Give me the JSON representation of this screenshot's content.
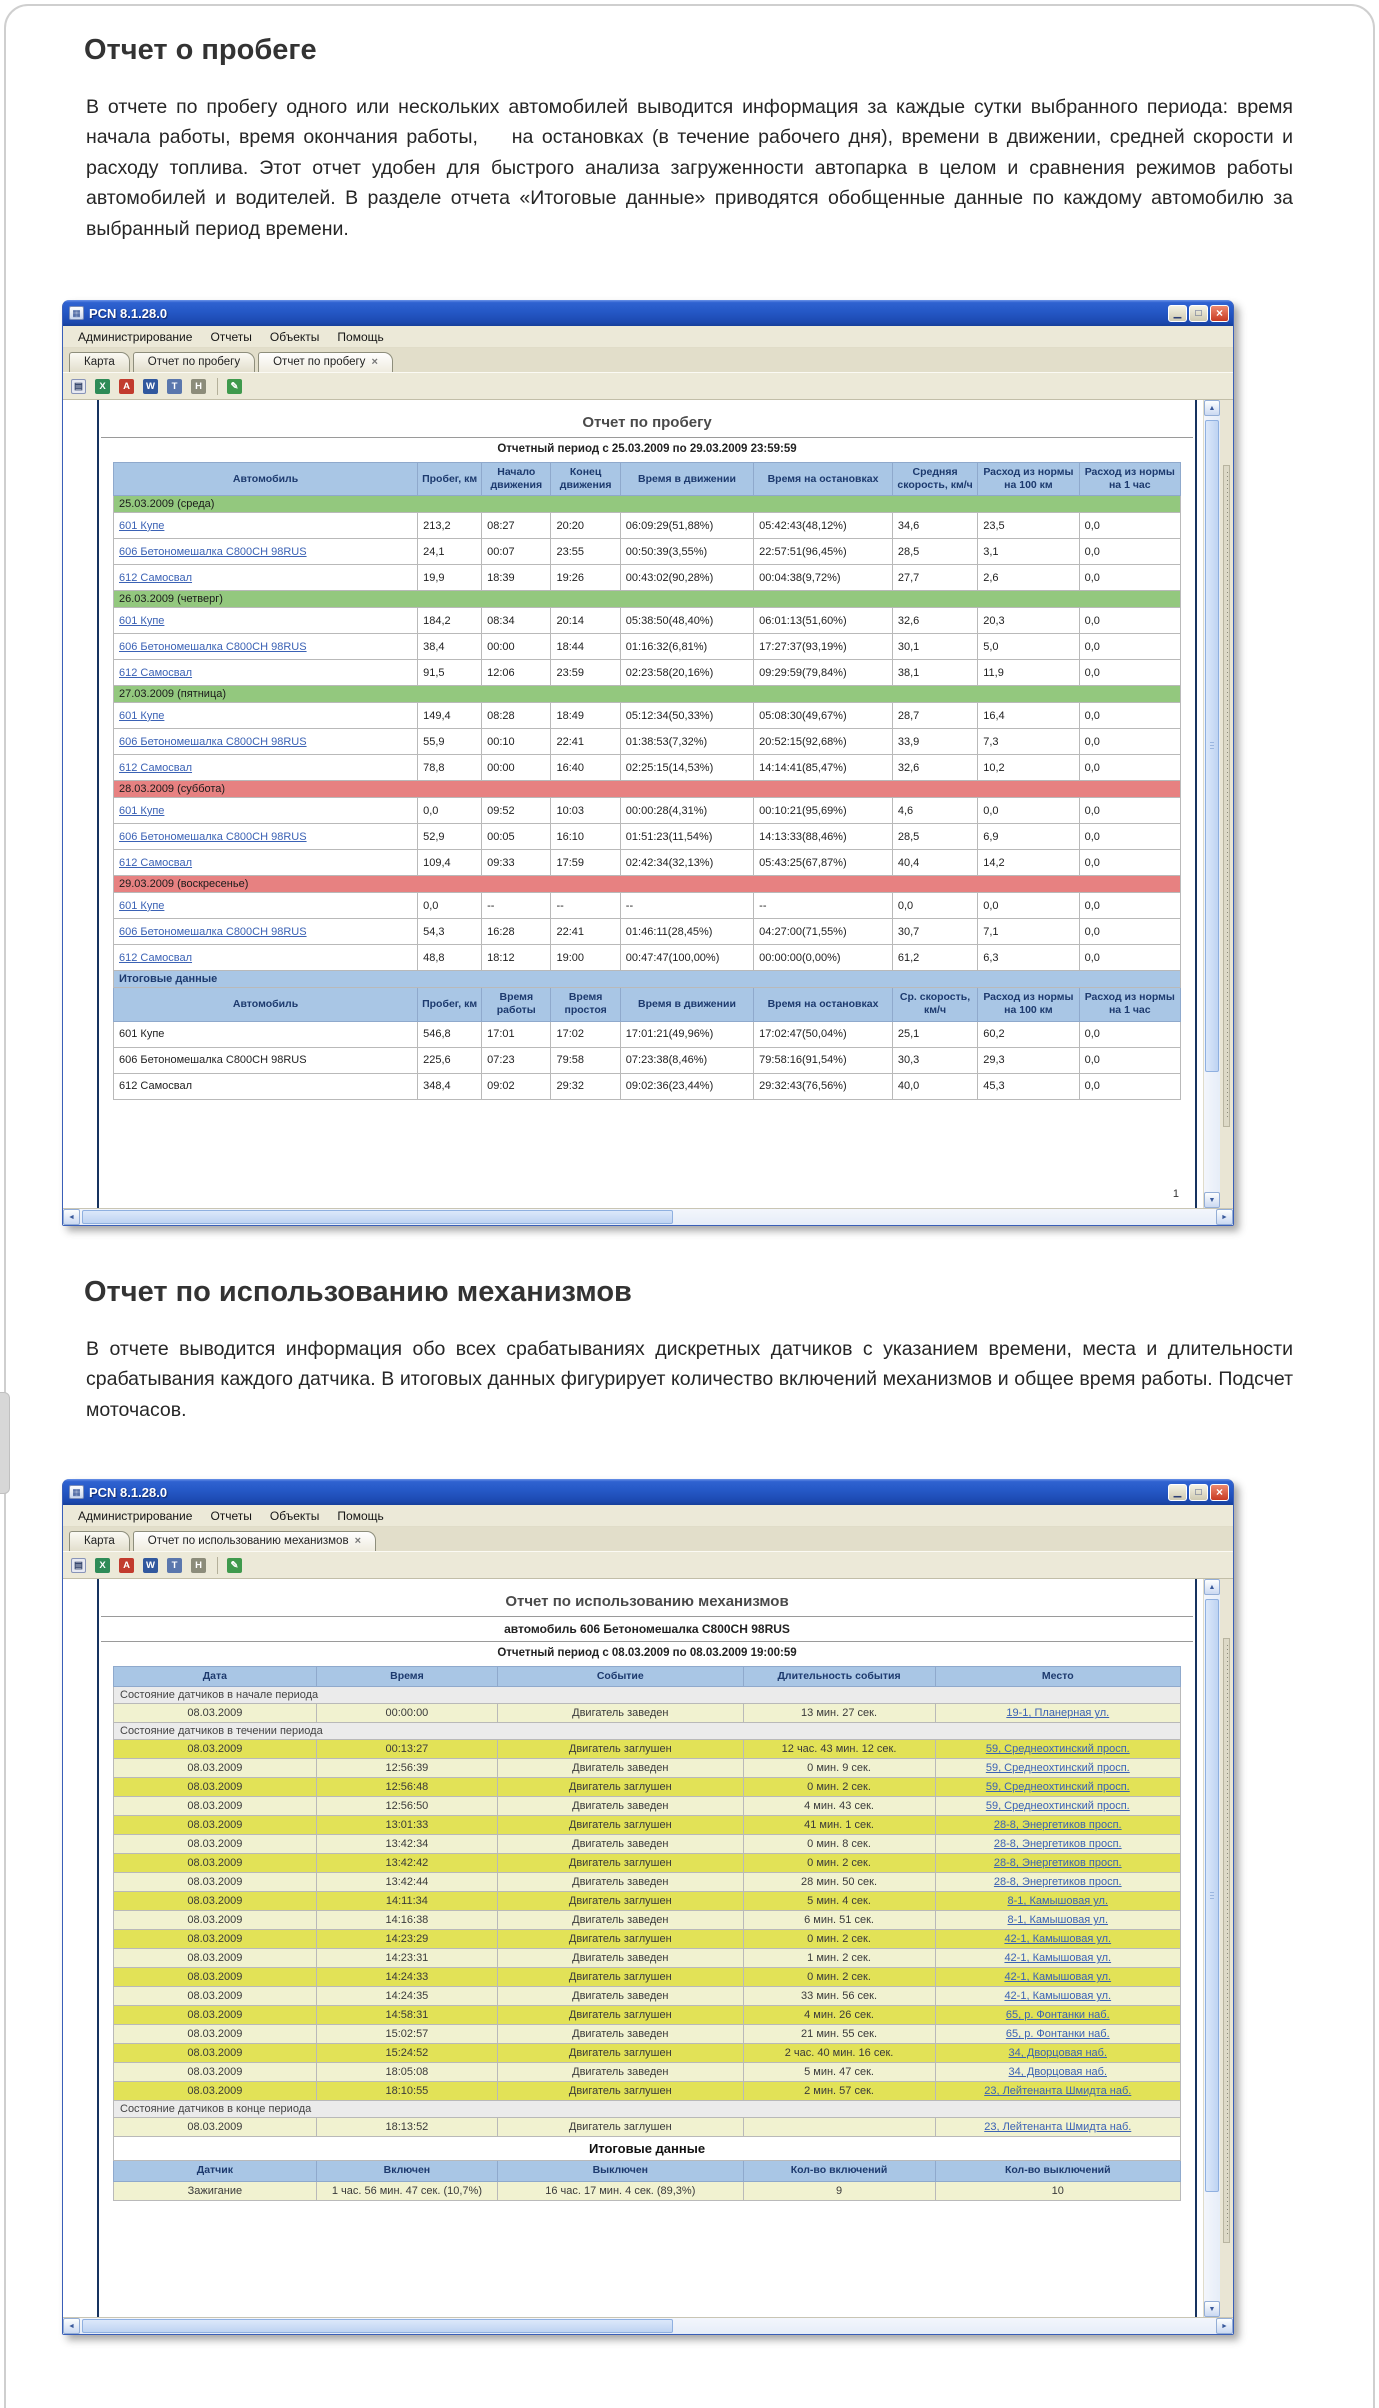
{
  "sections": [
    {
      "heading": "Отчет о пробеге",
      "paragraph": "В отчете по пробегу одного или нескольких автомобилей выводится информация за каждые сутки выбранного периода: время начала работы, время окончания работы,    на остановках (в течение рабочего дня), времени в движении, средней скорости и расходу топлива. Этот отчет удобен для быстрого анализа загруженности автопарка в целом и сравнения режимов работы автомобилей и водителей. В разделе отчета «Итоговые данные» приводятся обобщенные данные по каждому автомобилю за выбранный период времени."
    },
    {
      "heading": "Отчет по использованию механизмов",
      "paragraph": "В отчете выводится информация обо всех срабатываниях дискретных датчиков с указанием времени, места и длительности срабатывания каждого датчика. В итоговых данных фигурирует количество включений механизмов и общее время работы. Подсчет моточасов."
    }
  ],
  "chrome": {
    "title": "PCN 8.1.28.0",
    "app_icon_glyph": "▦",
    "btn_min": "▁",
    "btn_max": "□",
    "btn_close": "×",
    "menu": [
      "Администрирование",
      "Отчеты",
      "Объекты",
      "Помощь"
    ],
    "toolbar": [
      {
        "name": "print-icon",
        "glyph": "▤",
        "kind": "ic-print"
      },
      {
        "name": "export-excel-icon",
        "glyph": "X",
        "kind": "ic-xls"
      },
      {
        "name": "export-pdf-icon",
        "glyph": "A",
        "kind": "ic-pdf"
      },
      {
        "name": "export-word-icon",
        "glyph": "W",
        "kind": "ic-doc"
      },
      {
        "name": "export-text-icon",
        "glyph": "T",
        "kind": "ic-txt"
      },
      {
        "name": "export-html-icon",
        "glyph": "H",
        "kind": "ic-htm"
      },
      {
        "name": "settings-icon",
        "glyph": "✎",
        "kind": "ic-set"
      }
    ],
    "scroll": {
      "up": "▲",
      "down": "▼",
      "left": "◄",
      "right": "►"
    }
  },
  "colors": {
    "title_bar_blue": "#2558c6",
    "table_header_blue": "#a9c6e5",
    "weekday_band_green": "#93c87e",
    "weekend_band_red": "#e78181",
    "engine_on_row_yellow": "#f1f2d0",
    "engine_off_row_yellow": "#e2e257",
    "link_blue": "#3b62b5"
  },
  "window1": {
    "tabs": [
      {
        "label": "Карта",
        "state": "",
        "close_glyph": ""
      },
      {
        "label": "Отчет по пробегу",
        "state": "",
        "close_glyph": ""
      },
      {
        "label": "Отчет по пробегу",
        "state": "active",
        "close_glyph": "×"
      }
    ],
    "report": {
      "title": "Отчет по пробегу",
      "period": "Отчетный период с 25.03.2009 по 29.03.2009 23:59:59",
      "page_number": "1",
      "columns": [
        "Автомобиль",
        "Пробег, км",
        "Начало движения",
        "Конец движения",
        "Время в движении",
        "Время на остановках",
        "Средняя скорость, км/ч",
        "Расход из нормы на 100 км",
        "Расход из нормы на 1 час"
      ],
      "groups": [
        {
          "label": "25.03.2009 (среда)",
          "type": "",
          "rows": [
            [
              "601 Купе",
              "213,2",
              "08:27",
              "20:20",
              "06:09:29(51,88%)",
              "05:42:43(48,12%)",
              "34,6",
              "23,5",
              "0,0"
            ],
            [
              "606 Бетономешалка C800CH 98RUS",
              "24,1",
              "00:07",
              "23:55",
              "00:50:39(3,55%)",
              "22:57:51(96,45%)",
              "28,5",
              "3,1",
              "0,0"
            ],
            [
              "612 Самосвал",
              "19,9",
              "18:39",
              "19:26",
              "00:43:02(90,28%)",
              "00:04:38(9,72%)",
              "27,7",
              "2,6",
              "0,0"
            ]
          ]
        },
        {
          "label": "26.03.2009 (четверг)",
          "type": "",
          "rows": [
            [
              "601 Купе",
              "184,2",
              "08:34",
              "20:14",
              "05:38:50(48,40%)",
              "06:01:13(51,60%)",
              "32,6",
              "20,3",
              "0,0"
            ],
            [
              "606 Бетономешалка C800CH 98RUS",
              "38,4",
              "00:00",
              "18:44",
              "01:16:32(6,81%)",
              "17:27:37(93,19%)",
              "30,1",
              "5,0",
              "0,0"
            ],
            [
              "612 Самосвал",
              "91,5",
              "12:06",
              "23:59",
              "02:23:58(20,16%)",
              "09:29:59(79,84%)",
              "38,1",
              "11,9",
              "0,0"
            ]
          ]
        },
        {
          "label": "27.03.2009 (пятница)",
          "type": "",
          "rows": [
            [
              "601 Купе",
              "149,4",
              "08:28",
              "18:49",
              "05:12:34(50,33%)",
              "05:08:30(49,67%)",
              "28,7",
              "16,4",
              "0,0"
            ],
            [
              "606 Бетономешалка C800CH 98RUS",
              "55,9",
              "00:10",
              "22:41",
              "01:38:53(7,32%)",
              "20:52:15(92,68%)",
              "33,9",
              "7,3",
              "0,0"
            ],
            [
              "612 Самосвал",
              "78,8",
              "00:00",
              "16:40",
              "02:25:15(14,53%)",
              "14:14:41(85,47%)",
              "32,6",
              "10,2",
              "0,0"
            ]
          ]
        },
        {
          "label": "28.03.2009 (суббота)",
          "type": "weekend",
          "rows": [
            [
              "601 Купе",
              "0,0",
              "09:52",
              "10:03",
              "00:00:28(4,31%)",
              "00:10:21(95,69%)",
              "4,6",
              "0,0",
              "0,0"
            ],
            [
              "606 Бетономешалка C800CH 98RUS",
              "52,9",
              "00:05",
              "16:10",
              "01:51:23(11,54%)",
              "14:13:33(88,46%)",
              "28,5",
              "6,9",
              "0,0"
            ],
            [
              "612 Самосвал",
              "109,4",
              "09:33",
              "17:59",
              "02:42:34(32,13%)",
              "05:43:25(67,87%)",
              "40,4",
              "14,2",
              "0,0"
            ]
          ]
        },
        {
          "label": "29.03.2009 (воскресенье)",
          "type": "weekend",
          "rows": [
            [
              "601 Купе",
              "0,0",
              "--",
              "--",
              "--",
              "--",
              "0,0",
              "0,0",
              "0,0"
            ],
            [
              "606 Бетономешалка C800CH 98RUS",
              "54,3",
              "16:28",
              "22:41",
              "01:46:11(28,45%)",
              "04:27:00(71,55%)",
              "30,7",
              "7,1",
              "0,0"
            ],
            [
              "612 Самосвал",
              "48,8",
              "18:12",
              "19:00",
              "00:47:47(100,00%)",
              "00:00:00(0,00%)",
              "61,2",
              "6,3",
              "0,0"
            ]
          ]
        }
      ],
      "summary": {
        "label": "Итоговые данные",
        "columns": [
          "Автомобиль",
          "Пробег, км",
          "Время работы",
          "Время простоя",
          "Время в движении",
          "Время на остановках",
          "Ср. скорость, км/ч",
          "Расход из нормы на 100 км",
          "Расход из нормы на 1 час"
        ],
        "rows": [
          [
            "601 Купе",
            "546,8",
            "17:01",
            "17:02",
            "17:01:21(49,96%)",
            "17:02:47(50,04%)",
            "25,1",
            "60,2",
            "0,0"
          ],
          [
            "606 Бетономешалка C800CH 98RUS",
            "225,6",
            "07:23",
            "79:58",
            "07:23:38(8,46%)",
            "79:58:16(91,54%)",
            "30,3",
            "29,3",
            "0,0"
          ],
          [
            "612 Самосвал",
            "348,4",
            "09:02",
            "29:32",
            "09:02:36(23,44%)",
            "29:32:43(76,56%)",
            "40,0",
            "45,3",
            "0,0"
          ]
        ]
      }
    }
  },
  "window2": {
    "tabs": [
      {
        "label": "Карта",
        "state": "",
        "close_glyph": ""
      },
      {
        "label": "Отчет по использованию механизмов",
        "state": "active",
        "close_glyph": "×"
      }
    ],
    "report": {
      "title": "Отчет по использованию механизмов",
      "subtitle": "автомобиль 606 Бетономешалка C800CH 98RUS",
      "period": "Отчетный период с 08.03.2009 по 08.03.2009 19:00:59",
      "columns": [
        "Дата",
        "Время",
        "Событие",
        "Длительность события",
        "Место"
      ],
      "sections": [
        {
          "label": "Состояние датчиков  в начале периода",
          "rows": [
            {
              "date": "08.03.2009",
              "time": "00:00:00",
              "event": "Двигатель заведен",
              "duration": "13 мин. 27 сек.",
              "place": "19-1, Планерная ул.",
              "tone": ""
            }
          ]
        },
        {
          "label": "Состояние датчиков в течении периода",
          "rows": [
            {
              "date": "08.03.2009",
              "time": "00:13:27",
              "event": "Двигатель заглушен",
              "duration": "12 час. 43 мин. 12 сек.",
              "place": "59, Среднеохтинский просп.",
              "tone": "bright"
            },
            {
              "date": "08.03.2009",
              "time": "12:56:39",
              "event": "Двигатель заведен",
              "duration": "0 мин. 9 сек.",
              "place": "59, Среднеохтинский просп.",
              "tone": ""
            },
            {
              "date": "08.03.2009",
              "time": "12:56:48",
              "event": "Двигатель заглушен",
              "duration": "0 мин. 2 сек.",
              "place": "59, Среднеохтинский просп.",
              "tone": "bright"
            },
            {
              "date": "08.03.2009",
              "time": "12:56:50",
              "event": "Двигатель заведен",
              "duration": "4 мин. 43 сек.",
              "place": "59, Среднеохтинский просп.",
              "tone": ""
            },
            {
              "date": "08.03.2009",
              "time": "13:01:33",
              "event": "Двигатель заглушен",
              "duration": "41 мин. 1 сек.",
              "place": "28-8, Энергетиков просп.",
              "tone": "bright"
            },
            {
              "date": "08.03.2009",
              "time": "13:42:34",
              "event": "Двигатель заведен",
              "duration": "0 мин. 8 сек.",
              "place": "28-8, Энергетиков просп.",
              "tone": ""
            },
            {
              "date": "08.03.2009",
              "time": "13:42:42",
              "event": "Двигатель заглушен",
              "duration": "0 мин. 2 сек.",
              "place": "28-8, Энергетиков просп.",
              "tone": "bright"
            },
            {
              "date": "08.03.2009",
              "time": "13:42:44",
              "event": "Двигатель заведен",
              "duration": "28 мин. 50 сек.",
              "place": "28-8, Энергетиков просп.",
              "tone": ""
            },
            {
              "date": "08.03.2009",
              "time": "14:11:34",
              "event": "Двигатель заглушен",
              "duration": "5 мин. 4 сек.",
              "place": "8-1, Камышовая ул.",
              "tone": "bright"
            },
            {
              "date": "08.03.2009",
              "time": "14:16:38",
              "event": "Двигатель заведен",
              "duration": "6 мин. 51 сек.",
              "place": "8-1, Камышовая ул.",
              "tone": ""
            },
            {
              "date": "08.03.2009",
              "time": "14:23:29",
              "event": "Двигатель заглушен",
              "duration": "0 мин. 2 сек.",
              "place": "42-1, Камышовая ул.",
              "tone": "bright"
            },
            {
              "date": "08.03.2009",
              "time": "14:23:31",
              "event": "Двигатель заведен",
              "duration": "1 мин. 2 сек.",
              "place": "42-1, Камышовая ул.",
              "tone": ""
            },
            {
              "date": "08.03.2009",
              "time": "14:24:33",
              "event": "Двигатель заглушен",
              "duration": "0 мин. 2 сек.",
              "place": "42-1, Камышовая ул.",
              "tone": "bright"
            },
            {
              "date": "08.03.2009",
              "time": "14:24:35",
              "event": "Двигатель заведен",
              "duration": "33 мин. 56 сек.",
              "place": "42-1, Камышовая ул.",
              "tone": ""
            },
            {
              "date": "08.03.2009",
              "time": "14:58:31",
              "event": "Двигатель заглушен",
              "duration": "4 мин. 26 сек.",
              "place": "65, р. Фонтанки наб.",
              "tone": "bright"
            },
            {
              "date": "08.03.2009",
              "time": "15:02:57",
              "event": "Двигатель заведен",
              "duration": "21 мин. 55 сек.",
              "place": "65, р. Фонтанки наб.",
              "tone": ""
            },
            {
              "date": "08.03.2009",
              "time": "15:24:52",
              "event": "Двигатель заглушен",
              "duration": "2 час. 40 мин. 16 сек.",
              "place": "34, Дворцовая наб.",
              "tone": "bright"
            },
            {
              "date": "08.03.2009",
              "time": "18:05:08",
              "event": "Двигатель заведен",
              "duration": "5 мин. 47 сек.",
              "place": "34, Дворцовая наб.",
              "tone": ""
            },
            {
              "date": "08.03.2009",
              "time": "18:10:55",
              "event": "Двигатель заглушен",
              "duration": "2 мин. 57 сек.",
              "place": "23, Лейтенанта Шмидта наб.",
              "tone": "bright"
            }
          ]
        },
        {
          "label": "Состояние датчиков в конце периода",
          "rows": [
            {
              "date": "08.03.2009",
              "time": "18:13:52",
              "event": "Двигатель заглушен",
              "duration": "",
              "place": "23, Лейтенанта Шмидта наб.",
              "tone": ""
            }
          ]
        }
      ],
      "summary": {
        "title": "Итоговые данные",
        "columns": [
          "Датчик",
          "Включен",
          "Выключен",
          "Кол-во включений",
          "Кол-во выключений"
        ],
        "rows": [
          [
            "Зажигание",
            "1 час. 56 мин. 47 сек. (10,7%)",
            "16 час. 17 мин. 4 сек. (89,3%)",
            "9",
            "10"
          ]
        ]
      }
    }
  }
}
